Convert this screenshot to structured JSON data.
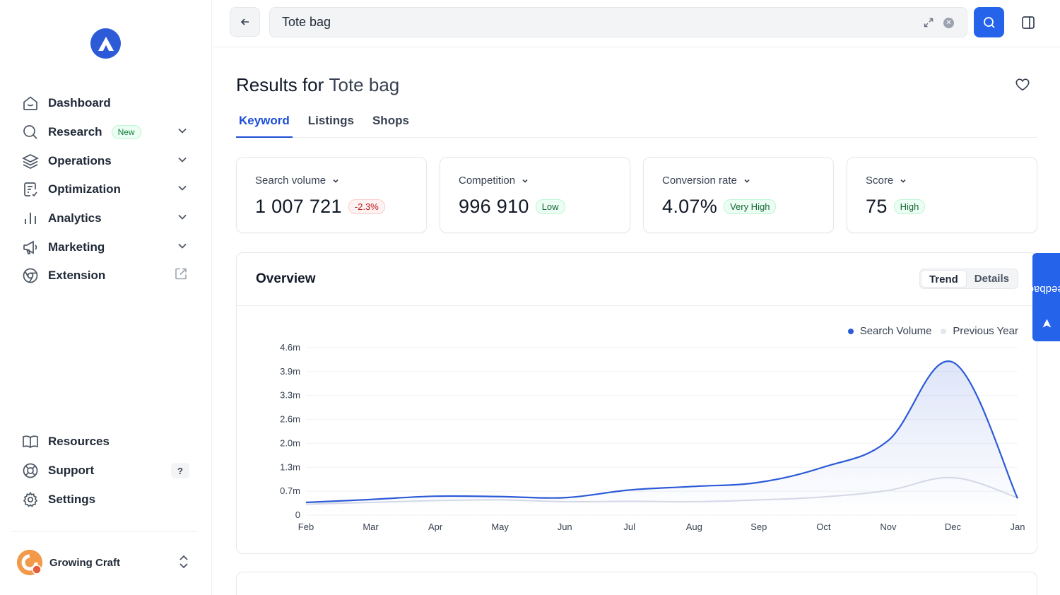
{
  "sidebar": {
    "nav": [
      {
        "label": "Dashboard",
        "icon": "home-icon"
      },
      {
        "label": "Research",
        "icon": "search-icon",
        "badge": "New"
      },
      {
        "label": "Operations",
        "icon": "layers-icon"
      },
      {
        "label": "Optimization",
        "icon": "clipboard-icon"
      },
      {
        "label": "Analytics",
        "icon": "bar-chart-icon"
      },
      {
        "label": "Marketing",
        "icon": "megaphone-icon"
      },
      {
        "label": "Extension",
        "icon": "chrome-icon"
      }
    ],
    "bottom": [
      {
        "label": "Resources",
        "icon": "book-icon"
      },
      {
        "label": "Support",
        "icon": "lifebuoy-icon",
        "badge": "?"
      },
      {
        "label": "Settings",
        "icon": "gear-icon"
      }
    ],
    "account": {
      "name": "Growing Craft"
    }
  },
  "search": {
    "value": "Tote bag"
  },
  "results": {
    "prefix": "Results for",
    "query": "Tote bag"
  },
  "tabs": [
    "Keyword",
    "Listings",
    "Shops"
  ],
  "cards": [
    {
      "label": "Search volume",
      "value": "1 007 721",
      "badge": "-2.3%"
    },
    {
      "label": "Competition",
      "value": "996 910",
      "badge": "Low"
    },
    {
      "label": "Conversion rate",
      "value": "4.07%",
      "badge": "Very High"
    },
    {
      "label": "Score",
      "value": "75",
      "badge": "High"
    }
  ],
  "overview": {
    "title": "Overview",
    "toggle": [
      "Trend",
      "Details"
    ],
    "legend": [
      "Search Volume",
      "Previous Year"
    ]
  },
  "feedback": "Feedback",
  "colors": {
    "accent": "#2563eb",
    "series": "#2d5bd7",
    "previous": "#d4d8e6"
  },
  "chart_data": {
    "type": "area",
    "x": [
      "Feb",
      "Mar",
      "Apr",
      "May",
      "Jun",
      "Jul",
      "Aug",
      "Sep",
      "Oct",
      "Nov",
      "Dec",
      "Jan"
    ],
    "y_ticks": [
      "0",
      "0.7m",
      "1.3m",
      "2.0m",
      "2.6m",
      "3.3m",
      "3.9m",
      "4.6m"
    ],
    "ylim": [
      0,
      4600000
    ],
    "series": [
      {
        "name": "Search Volume",
        "values": [
          350000,
          430000,
          520000,
          510000,
          480000,
          690000,
          790000,
          900000,
          1320000,
          2050000,
          4200000,
          460000
        ]
      },
      {
        "name": "Previous Year",
        "values": [
          300000,
          350000,
          400000,
          420000,
          370000,
          380000,
          370000,
          420000,
          500000,
          680000,
          1030000,
          480000
        ]
      }
    ]
  }
}
